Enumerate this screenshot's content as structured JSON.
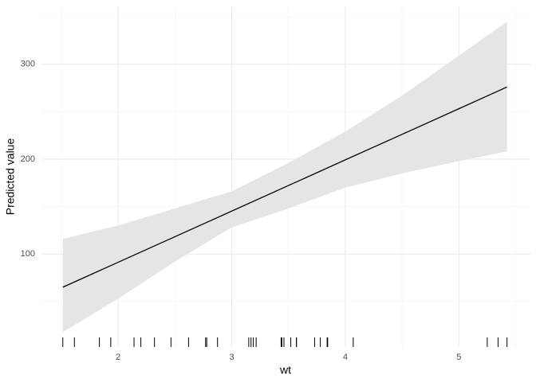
{
  "chart_data": {
    "type": "line",
    "x_label": "wt",
    "y_label": "Predicted value",
    "x": [
      1.513,
      2,
      2.5,
      3,
      3.5,
      4,
      4.5,
      5,
      5.424
    ],
    "series": [
      {
        "color": "#000000",
        "values": [
          65,
          91.3,
          118.2,
          145.2,
          172.2,
          199.2,
          226.1,
          253.1,
          276
        ]
      }
    ],
    "band": {
      "color": "#e5e5e5",
      "lower": [
        17.6,
        53,
        92,
        128,
        148,
        170,
        185,
        198,
        208
      ],
      "upper": [
        116,
        130,
        148,
        166,
        196,
        229,
        267,
        309,
        345
      ]
    },
    "rug": [
      2.62,
      2.875,
      2.32,
      3.215,
      3.44,
      3.46,
      3.57,
      3.19,
      3.15,
      3.44,
      3.44,
      4.07,
      3.73,
      3.78,
      5.25,
      5.424,
      5.345,
      2.2,
      1.615,
      1.835,
      2.465,
      3.52,
      3.435,
      3.84,
      3.845,
      1.935,
      2.14,
      1.513,
      3.17,
      2.77,
      3.57,
      2.78
    ],
    "xlim": [
      1.325,
      5.63
    ],
    "ylim": [
      2,
      361
    ],
    "xticks": [
      2,
      3,
      4,
      5
    ],
    "yticks": [
      100,
      200,
      300
    ],
    "minor_xticks": [
      1.5,
      2.5,
      3.5,
      4.5,
      5.5
    ],
    "minor_yticks": [
      50,
      150,
      250,
      350
    ],
    "grid": true
  }
}
